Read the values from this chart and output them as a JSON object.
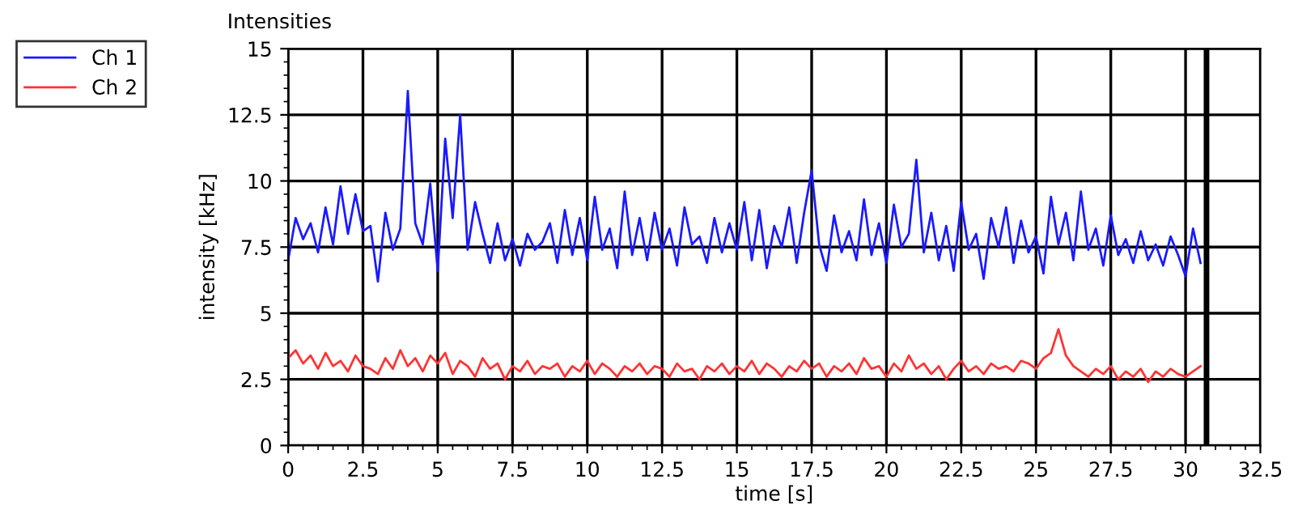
{
  "chart_data": {
    "type": "line",
    "title": "Intensities",
    "xlabel": "time [s]",
    "ylabel": "intensity [kHz]",
    "x": [
      0,
      0.25,
      0.5,
      0.75,
      1,
      1.25,
      1.5,
      1.75,
      2,
      2.25,
      2.5,
      2.75,
      3,
      3.25,
      3.5,
      3.75,
      4,
      4.25,
      4.5,
      4.75,
      5,
      5.25,
      5.5,
      5.75,
      6,
      6.25,
      6.5,
      6.75,
      7,
      7.25,
      7.5,
      7.75,
      8,
      8.25,
      8.5,
      8.75,
      9,
      9.25,
      9.5,
      9.75,
      10,
      10.25,
      10.5,
      10.75,
      11,
      11.25,
      11.5,
      11.75,
      12,
      12.25,
      12.5,
      12.75,
      13,
      13.25,
      13.5,
      13.75,
      14,
      14.25,
      14.5,
      14.75,
      15,
      15.25,
      15.5,
      15.75,
      16,
      16.25,
      16.5,
      16.75,
      17,
      17.25,
      17.5,
      17.75,
      18,
      18.25,
      18.5,
      18.75,
      19,
      19.25,
      19.5,
      19.75,
      20,
      20.25,
      20.5,
      20.75,
      21,
      21.25,
      21.5,
      21.75,
      22,
      22.25,
      22.5,
      22.75,
      23,
      23.25,
      23.5,
      23.75,
      24,
      24.25,
      24.5,
      24.75,
      25,
      25.25,
      25.5,
      25.75,
      26,
      26.25,
      26.5,
      26.75,
      27,
      27.25,
      27.5,
      27.75,
      28,
      28.25,
      28.5,
      28.75,
      29,
      29.25,
      29.5,
      29.75,
      30,
      30.25,
      30.5
    ],
    "series": [
      {
        "name": "Ch 1",
        "color": "#1a1aff",
        "values": [
          7.0,
          8.6,
          7.8,
          8.4,
          7.3,
          9.0,
          7.6,
          9.8,
          8.0,
          9.5,
          8.1,
          8.3,
          6.2,
          8.8,
          7.4,
          8.2,
          13.4,
          8.4,
          7.6,
          9.9,
          6.6,
          11.6,
          8.6,
          12.5,
          7.4,
          9.2,
          8.0,
          6.9,
          8.4,
          7.0,
          7.8,
          6.8,
          8.0,
          7.4,
          7.7,
          8.4,
          6.9,
          8.9,
          7.2,
          8.6,
          7.0,
          9.4,
          7.4,
          8.2,
          6.7,
          9.6,
          7.2,
          8.6,
          7.0,
          8.8,
          7.4,
          8.2,
          6.8,
          9.0,
          7.6,
          7.9,
          6.9,
          8.6,
          7.3,
          8.4,
          7.4,
          9.2,
          7.0,
          8.9,
          6.7,
          8.3,
          7.5,
          9.0,
          6.9,
          8.8,
          10.4,
          7.6,
          6.6,
          8.7,
          7.3,
          8.1,
          7.0,
          9.3,
          7.2,
          8.4,
          6.9,
          9.1,
          7.5,
          8.0,
          10.8,
          7.3,
          8.8,
          7.0,
          8.3,
          6.6,
          9.2,
          7.4,
          8.0,
          6.3,
          8.6,
          7.5,
          9.0,
          6.9,
          8.5,
          7.3,
          7.9,
          6.5,
          9.4,
          7.6,
          8.8,
          7.0,
          9.6,
          7.4,
          8.2,
          6.8,
          8.7,
          7.2,
          7.8,
          6.9,
          8.1,
          7.0,
          7.6,
          6.8,
          7.9,
          7.2,
          6.4,
          8.2,
          6.9
        ]
      },
      {
        "name": "Ch 2",
        "color": "#ff3333",
        "values": [
          3.3,
          3.6,
          3.1,
          3.4,
          2.9,
          3.5,
          3.0,
          3.2,
          2.8,
          3.4,
          3.0,
          2.9,
          2.7,
          3.3,
          2.9,
          3.6,
          3.0,
          3.3,
          2.8,
          3.4,
          3.1,
          3.5,
          2.7,
          3.2,
          3.0,
          2.6,
          3.3,
          2.9,
          3.1,
          2.5,
          3.0,
          2.8,
          3.2,
          2.7,
          3.0,
          2.9,
          3.1,
          2.6,
          3.0,
          2.8,
          3.2,
          2.7,
          3.1,
          2.9,
          2.6,
          3.0,
          2.8,
          3.1,
          2.7,
          3.0,
          2.9,
          2.6,
          3.1,
          2.8,
          2.9,
          2.5,
          3.0,
          2.8,
          3.1,
          2.7,
          3.0,
          2.8,
          3.2,
          2.7,
          3.1,
          2.9,
          2.6,
          3.0,
          2.8,
          3.2,
          2.9,
          3.1,
          2.6,
          3.0,
          2.8,
          3.1,
          2.7,
          3.3,
          2.9,
          3.0,
          2.6,
          3.1,
          2.8,
          3.4,
          2.9,
          3.1,
          2.7,
          3.0,
          2.5,
          2.9,
          3.2,
          2.8,
          3.0,
          2.7,
          3.1,
          2.9,
          3.0,
          2.8,
          3.2,
          3.1,
          2.9,
          3.3,
          3.5,
          4.4,
          3.4,
          3.0,
          2.8,
          2.6,
          2.9,
          2.7,
          3.0,
          2.5,
          2.8,
          2.6,
          2.9,
          2.4,
          2.8,
          2.6,
          2.9,
          2.7,
          2.6,
          2.8,
          3.0
        ]
      }
    ],
    "xlim": [
      0,
      32.5
    ],
    "xticks": [
      0,
      2.5,
      5,
      7.5,
      10,
      12.5,
      15,
      17.5,
      20,
      22.5,
      25,
      27.5,
      30,
      32.5
    ],
    "ylim": [
      0,
      15
    ],
    "yticks": [
      0,
      2.5,
      5,
      7.5,
      10,
      12.5,
      15
    ],
    "ref_lines": [
      {
        "axis": "x",
        "value": 30.7,
        "color": "#000000"
      }
    ],
    "grid": true,
    "legend": "top left",
    "marker": "none",
    "line_style": "solid"
  }
}
